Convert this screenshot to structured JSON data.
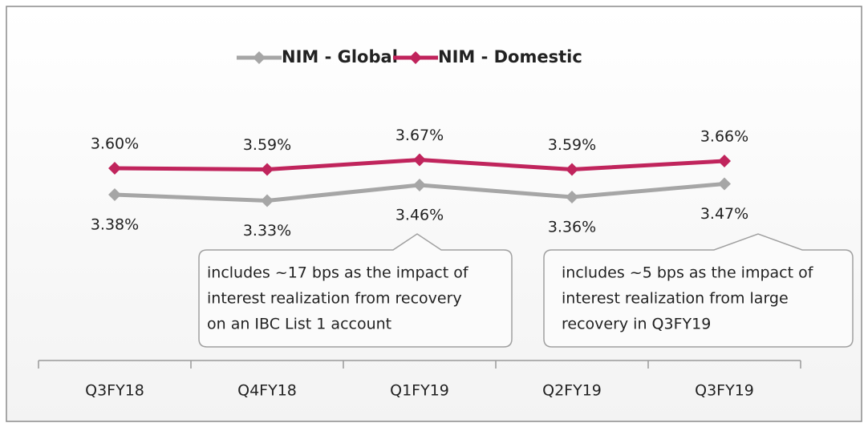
{
  "chart_data": {
    "type": "line",
    "categories": [
      "Q3FY18",
      "Q4FY18",
      "Q1FY19",
      "Q2FY19",
      "Q3FY19"
    ],
    "series": [
      {
        "name": "NIM - Global",
        "color": "#a6a6a6",
        "values": [
          3.38,
          3.33,
          3.46,
          3.36,
          3.47
        ],
        "value_labels": [
          "3.38%",
          "3.33%",
          "3.46%",
          "3.36%",
          "3.47%"
        ]
      },
      {
        "name": "NIM - Domestic",
        "color": "#c0245c",
        "values": [
          3.6,
          3.59,
          3.67,
          3.59,
          3.66
        ],
        "value_labels": [
          "3.60%",
          "3.59%",
          "3.67%",
          "3.59%",
          "3.66%"
        ]
      }
    ],
    "ylim": [
      2,
      4.4
    ],
    "legend": "top",
    "annotations": [
      {
        "lines": [
          "includes ~17 bps as the impact of",
          "interest realization from recovery",
          "on an IBC List 1 account"
        ]
      },
      {
        "lines": [
          "includes ~5 bps as the impact of",
          "interest realization from large",
          "recovery in Q3FY19"
        ]
      }
    ]
  }
}
